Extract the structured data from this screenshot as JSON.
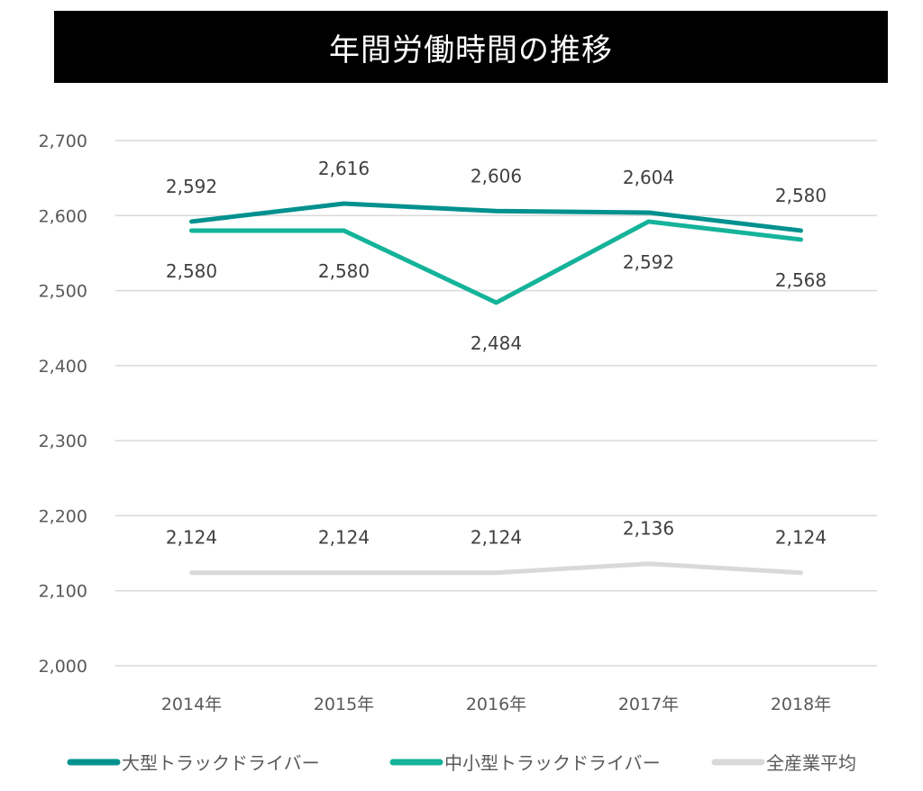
{
  "chart_data": {
    "type": "line",
    "title": "年間労働時間の推移",
    "categories": [
      "2014年",
      "2015年",
      "2016年",
      "2017年",
      "2018年"
    ],
    "ylim": [
      2000,
      2700
    ],
    "yticks": [
      2000,
      2100,
      2200,
      2300,
      2400,
      2500,
      2600,
      2700
    ],
    "ytick_labels": [
      "2,000",
      "2,100",
      "2,200",
      "2,300",
      "2,400",
      "2,500",
      "2,600",
      "2,700"
    ],
    "grid": true,
    "legend_position": "bottom",
    "series": [
      {
        "name": "大型トラックドライバー",
        "color": "#00918e",
        "values": [
          2592,
          2616,
          2606,
          2604,
          2580
        ],
        "labels": [
          "2,592",
          "2,616",
          "2,606",
          "2,604",
          "2,580"
        ],
        "label_position": "above"
      },
      {
        "name": "中小型トラックドライバー",
        "color": "#14b39a",
        "values": [
          2580,
          2580,
          2484,
          2592,
          2568
        ],
        "labels": [
          "2,580",
          "2,580",
          "2,484",
          "2,592",
          "2,568"
        ],
        "label_position": "below"
      },
      {
        "name": "全産業平均",
        "color": "#d9d9d9",
        "values": [
          2124,
          2124,
          2124,
          2136,
          2124
        ],
        "labels": [
          "2,124",
          "2,124",
          "2,124",
          "2,136",
          "2,124"
        ],
        "label_position": "above"
      }
    ]
  }
}
